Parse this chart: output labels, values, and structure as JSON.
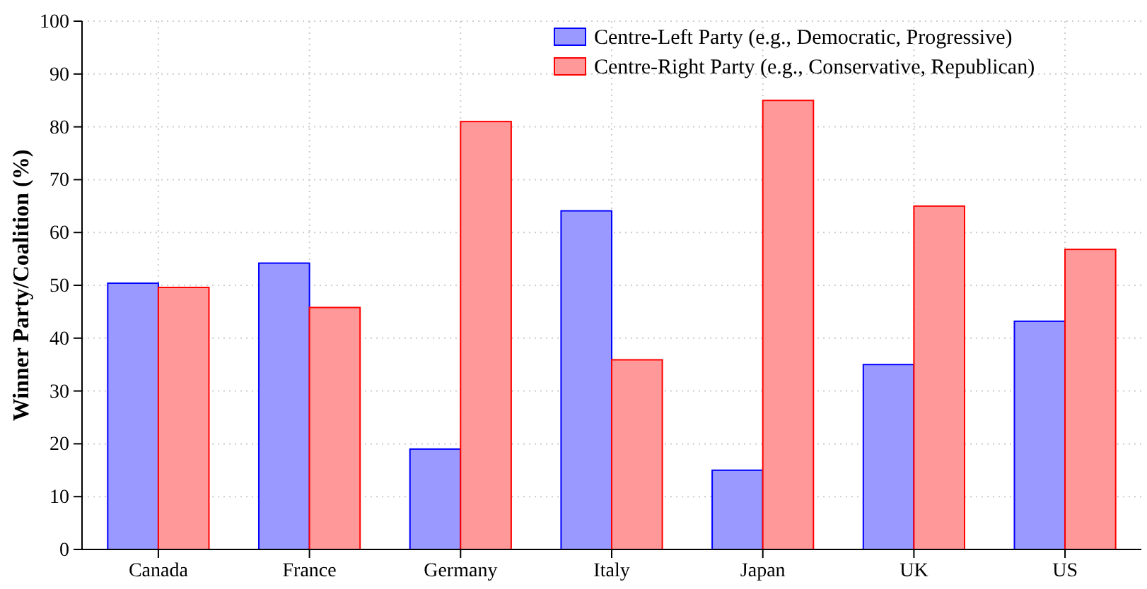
{
  "chart_data": {
    "type": "bar",
    "ylabel": "Winner Party/Coalition (%)",
    "categories": [
      "Canada",
      "France",
      "Germany",
      "Italy",
      "Japan",
      "UK",
      "US"
    ],
    "series": [
      {
        "name": "Centre-Left Party (e.g., Democratic, Progressive)",
        "color": "#9999ff",
        "values": [
          50.4,
          54.2,
          19,
          64.1,
          15,
          35,
          43.2
        ]
      },
      {
        "name": "Centre-Right Party (e.g., Conservative, Republican)",
        "color": "#ff9999",
        "values": [
          49.6,
          45.8,
          81,
          35.9,
          85,
          65,
          56.8
        ]
      }
    ],
    "ylim": [
      0,
      100
    ],
    "yticks": [
      0,
      10,
      20,
      30,
      40,
      50,
      60,
      70,
      80,
      90,
      100
    ],
    "grid": true,
    "legend": "top right"
  }
}
